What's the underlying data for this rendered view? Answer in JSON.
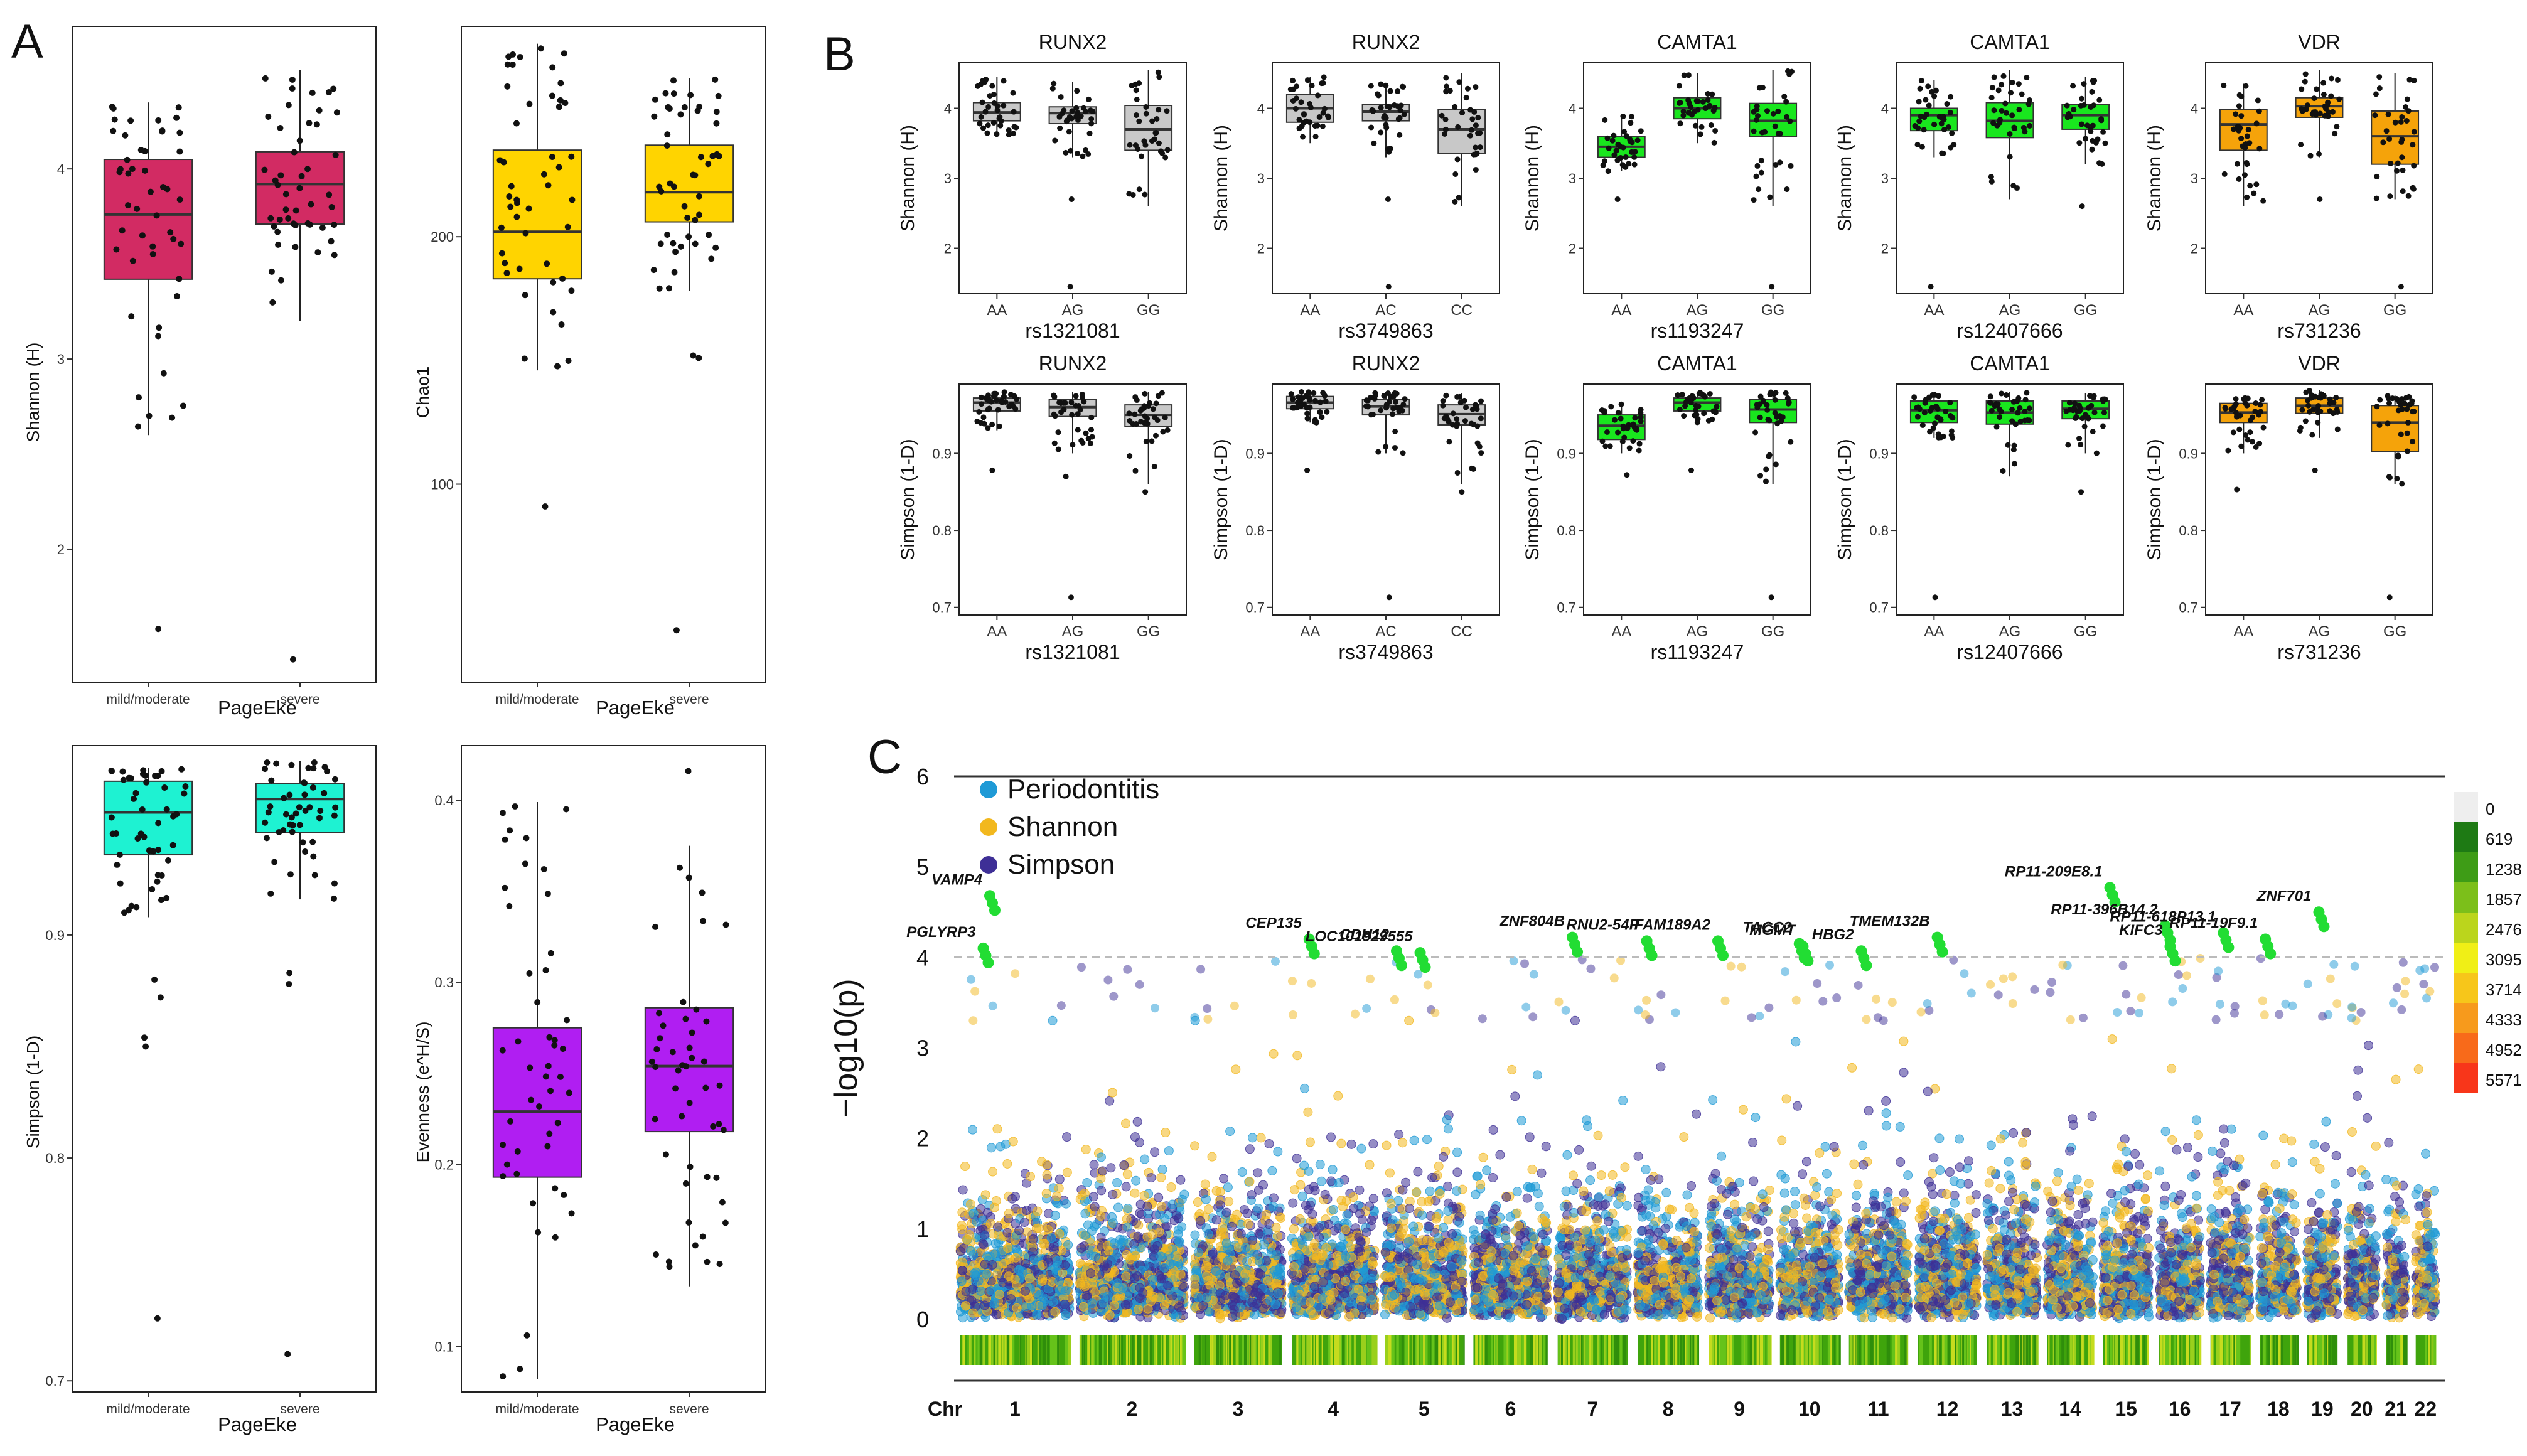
{
  "panel_letters": {
    "a": "A",
    "b": "B",
    "c": "C"
  },
  "colors": {
    "shannon_box": "#d22b63",
    "chao1_box": "#ffd400",
    "simpson_box": "#1ef2d2",
    "evenness_box": "#b01ef2",
    "grey_box": "#c8c8c8",
    "green_box": "#19e61e",
    "orange_box": "#f5a30a",
    "periodontitis": "#1f9ad6",
    "shannon_pt": "#f2b81e",
    "simpson_pt": "#3e2f96",
    "hit_pt": "#22dd33"
  },
  "chart_data": [
    {
      "id": "A1",
      "type": "box",
      "ylabel": "Shannon (H)",
      "xlabel": "PageEke",
      "ylim": [
        1.3,
        4.75
      ],
      "yticks": [
        2,
        3,
        4
      ],
      "categories": [
        "mild/moderate",
        "severe"
      ],
      "boxes": [
        {
          "min": 2.6,
          "q1": 3.42,
          "median": 3.76,
          "q3": 4.05,
          "max": 4.35,
          "outliers": [
            1.58
          ]
        },
        {
          "min": 3.2,
          "q1": 3.71,
          "median": 3.92,
          "q3": 4.09,
          "max": 4.52,
          "outliers": [
            1.42
          ]
        }
      ]
    },
    {
      "id": "A2",
      "type": "box",
      "ylabel": "Chao1",
      "xlabel": "PageEke",
      "ylim": [
        20,
        285
      ],
      "yticks": [
        100,
        200
      ],
      "categories": [
        "mild/moderate",
        "severe"
      ],
      "boxes": [
        {
          "min": 146,
          "q1": 183,
          "median": 202,
          "q3": 235,
          "max": 278,
          "outliers": [
            91
          ]
        },
        {
          "min": 178,
          "q1": 206,
          "median": 218,
          "q3": 237,
          "max": 264,
          "outliers": [
            41,
            151,
            152
          ]
        }
      ]
    },
    {
      "id": "A3",
      "type": "box",
      "ylabel": "Simpson (1-D)",
      "xlabel": "PageEke",
      "ylim": [
        0.695,
        0.985
      ],
      "yticks": [
        0.7,
        0.8,
        0.9
      ],
      "categories": [
        "mild/moderate",
        "severe"
      ],
      "boxes": [
        {
          "min": 0.908,
          "q1": 0.936,
          "median": 0.955,
          "q3": 0.969,
          "max": 0.975,
          "outliers": [
            0.728,
            0.85,
            0.854,
            0.872,
            0.88
          ]
        },
        {
          "min": 0.916,
          "q1": 0.946,
          "median": 0.961,
          "q3": 0.968,
          "max": 0.978,
          "outliers": [
            0.712,
            0.878,
            0.883
          ]
        }
      ]
    },
    {
      "id": "A4",
      "type": "box",
      "ylabel": "Evenness (e^H/S)",
      "xlabel": "PageEke",
      "ylim": [
        0.075,
        0.43
      ],
      "yticks": [
        0.1,
        0.2,
        0.3,
        0.4
      ],
      "categories": [
        "mild/moderate",
        "severe"
      ],
      "boxes": [
        {
          "min": 0.082,
          "q1": 0.193,
          "median": 0.229,
          "q3": 0.275,
          "max": 0.399,
          "outliers": []
        },
        {
          "min": 0.133,
          "q1": 0.218,
          "median": 0.254,
          "q3": 0.286,
          "max": 0.375,
          "outliers": [
            0.416
          ]
        }
      ]
    },
    {
      "id": "B-shannon",
      "type": "box-grid",
      "ylabel": "Shannon (H)",
      "ylim": [
        1.35,
        4.65
      ],
      "yticks": [
        2,
        3,
        4
      ],
      "panels": [
        {
          "gene": "RUNX2",
          "snp": "rs1321081",
          "categories": [
            "AA",
            "AG",
            "GG"
          ],
          "color": "grey",
          "boxes": [
            {
              "min": 3.6,
              "q1": 3.82,
              "median": 3.94,
              "q3": 4.08,
              "max": 4.45,
              "outliers": []
            },
            {
              "min": 3.3,
              "q1": 3.78,
              "median": 3.93,
              "q3": 4.02,
              "max": 4.38,
              "outliers": [
                2.7,
                1.45
              ]
            },
            {
              "min": 2.6,
              "q1": 3.4,
              "median": 3.7,
              "q3": 4.04,
              "max": 4.55,
              "outliers": []
            }
          ]
        },
        {
          "gene": "RUNX2",
          "snp": "rs3749863",
          "categories": [
            "AA",
            "AC",
            "CC"
          ],
          "color": "grey",
          "boxes": [
            {
              "min": 3.5,
              "q1": 3.8,
              "median": 4.0,
              "q3": 4.2,
              "max": 4.45,
              "outliers": []
            },
            {
              "min": 3.3,
              "q1": 3.82,
              "median": 3.95,
              "q3": 4.05,
              "max": 4.35,
              "outliers": [
                2.7,
                1.45
              ]
            },
            {
              "min": 2.6,
              "q1": 3.35,
              "median": 3.7,
              "q3": 3.98,
              "max": 4.5,
              "outliers": []
            }
          ]
        },
        {
          "gene": "CAMTA1",
          "snp": "rs1193247",
          "categories": [
            "AA",
            "AG",
            "GG"
          ],
          "color": "green",
          "boxes": [
            {
              "min": 3.1,
              "q1": 3.3,
              "median": 3.45,
              "q3": 3.6,
              "max": 3.9,
              "outliers": [
                2.7
              ]
            },
            {
              "min": 3.5,
              "q1": 3.85,
              "median": 4.0,
              "q3": 4.15,
              "max": 4.5,
              "outliers": []
            },
            {
              "min": 2.6,
              "q1": 3.6,
              "median": 3.82,
              "q3": 4.07,
              "max": 4.55,
              "outliers": [
                1.45
              ]
            }
          ]
        },
        {
          "gene": "CAMTA1",
          "snp": "rs12407666",
          "categories": [
            "AA",
            "AG",
            "GG"
          ],
          "color": "green",
          "boxes": [
            {
              "min": 3.3,
              "q1": 3.68,
              "median": 3.9,
              "q3": 4.0,
              "max": 4.4,
              "outliers": [
                1.45
              ]
            },
            {
              "min": 2.7,
              "q1": 3.58,
              "median": 3.82,
              "q3": 4.08,
              "max": 4.55,
              "outliers": []
            },
            {
              "min": 3.2,
              "q1": 3.7,
              "median": 3.9,
              "q3": 4.05,
              "max": 4.45,
              "outliers": [
                2.6
              ]
            }
          ]
        },
        {
          "gene": "VDR",
          "snp": "rs731236",
          "categories": [
            "AA",
            "AG",
            "GG"
          ],
          "color": "orange",
          "boxes": [
            {
              "min": 2.6,
              "q1": 3.4,
              "median": 3.77,
              "q3": 3.98,
              "max": 4.35,
              "outliers": []
            },
            {
              "min": 3.3,
              "q1": 3.87,
              "median": 4.03,
              "q3": 4.15,
              "max": 4.55,
              "outliers": [
                2.7
              ]
            },
            {
              "min": 2.7,
              "q1": 3.2,
              "median": 3.6,
              "q3": 3.96,
              "max": 4.5,
              "outliers": [
                1.45
              ]
            }
          ]
        }
      ]
    },
    {
      "id": "B-simpson",
      "type": "box-grid",
      "ylabel": "Simpson (1-D)",
      "ylim": [
        0.69,
        0.99
      ],
      "yticks": [
        0.7,
        0.8,
        0.9
      ],
      "panels": [
        {
          "gene": "RUNX2",
          "snp": "rs1321081",
          "categories": [
            "AA",
            "AG",
            "GG"
          ],
          "color": "grey",
          "boxes": [
            {
              "min": 0.93,
              "q1": 0.955,
              "median": 0.966,
              "q3": 0.972,
              "max": 0.98,
              "outliers": [
                0.878
              ]
            },
            {
              "min": 0.9,
              "q1": 0.948,
              "median": 0.96,
              "q3": 0.97,
              "max": 0.98,
              "outliers": [
                0.713,
                0.87
              ]
            },
            {
              "min": 0.86,
              "q1": 0.935,
              "median": 0.95,
              "q3": 0.963,
              "max": 0.98,
              "outliers": [
                0.85
              ]
            }
          ]
        },
        {
          "gene": "RUNX2",
          "snp": "rs3749863",
          "categories": [
            "AA",
            "AC",
            "CC"
          ],
          "color": "grey",
          "boxes": [
            {
              "min": 0.94,
              "q1": 0.958,
              "median": 0.966,
              "q3": 0.974,
              "max": 0.98,
              "outliers": [
                0.878
              ]
            },
            {
              "min": 0.9,
              "q1": 0.95,
              "median": 0.961,
              "q3": 0.97,
              "max": 0.98,
              "outliers": [
                0.713
              ]
            },
            {
              "min": 0.86,
              "q1": 0.937,
              "median": 0.951,
              "q3": 0.963,
              "max": 0.978,
              "outliers": [
                0.85
              ]
            }
          ]
        },
        {
          "gene": "CAMTA1",
          "snp": "rs1193247",
          "categories": [
            "AA",
            "AG",
            "GG"
          ],
          "color": "green",
          "boxes": [
            {
              "min": 0.9,
              "q1": 0.918,
              "median": 0.936,
              "q3": 0.95,
              "max": 0.965,
              "outliers": [
                0.872
              ]
            },
            {
              "min": 0.94,
              "q1": 0.955,
              "median": 0.966,
              "q3": 0.972,
              "max": 0.98,
              "outliers": [
                0.878
              ]
            },
            {
              "min": 0.86,
              "q1": 0.94,
              "median": 0.957,
              "q3": 0.97,
              "max": 0.98,
              "outliers": [
                0.713
              ]
            }
          ]
        },
        {
          "gene": "CAMTA1",
          "snp": "rs12407666",
          "categories": [
            "AA",
            "AG",
            "GG"
          ],
          "color": "green",
          "boxes": [
            {
              "min": 0.92,
              "q1": 0.94,
              "median": 0.956,
              "q3": 0.968,
              "max": 0.978,
              "outliers": [
                0.713
              ]
            },
            {
              "min": 0.87,
              "q1": 0.938,
              "median": 0.953,
              "q3": 0.968,
              "max": 0.98,
              "outliers": []
            },
            {
              "min": 0.9,
              "q1": 0.945,
              "median": 0.958,
              "q3": 0.968,
              "max": 0.978,
              "outliers": [
                0.85
              ]
            }
          ]
        },
        {
          "gene": "VDR",
          "snp": "rs731236",
          "categories": [
            "AA",
            "AG",
            "GG"
          ],
          "color": "orange",
          "boxes": [
            {
              "min": 0.9,
              "q1": 0.94,
              "median": 0.953,
              "q3": 0.965,
              "max": 0.975,
              "outliers": [
                0.853
              ]
            },
            {
              "min": 0.92,
              "q1": 0.952,
              "median": 0.962,
              "q3": 0.972,
              "max": 0.982,
              "outliers": [
                0.878
              ]
            },
            {
              "min": 0.86,
              "q1": 0.902,
              "median": 0.94,
              "q3": 0.962,
              "max": 0.975,
              "outliers": [
                0.713
              ]
            }
          ]
        }
      ]
    },
    {
      "id": "C",
      "type": "manhattan",
      "ylabel": "−log10(p)",
      "xlabel": "Chr",
      "ylim": [
        0,
        6
      ],
      "yticks": [
        0,
        1,
        2,
        3,
        4,
        5,
        6
      ],
      "threshold": 4,
      "legend": [
        "Periodontitis",
        "Shannon",
        "Simpson"
      ],
      "chromosomes": [
        "1",
        "2",
        "3",
        "4",
        "5",
        "6",
        "7",
        "8",
        "9",
        "10",
        "11",
        "12",
        "13",
        "14",
        "15",
        "16",
        "17",
        "18",
        "19",
        "20",
        "21",
        "22"
      ],
      "density_legend": [
        "0",
        "619",
        "1238",
        "1857",
        "2476",
        "3095",
        "3714",
        "4333",
        "4952",
        "5571"
      ],
      "hits": [
        {
          "gene": "PGLYRP3",
          "chr": 1,
          "pos": 0.1,
          "p": 4.1
        },
        {
          "gene": "VAMP4",
          "chr": 1,
          "pos": 0.2,
          "p": 4.68
        },
        {
          "gene": "CEP135",
          "chr": 4,
          "pos": 0.1,
          "p": 4.2
        },
        {
          "gene": "CDH12",
          "chr": 5,
          "pos": 0.0,
          "p": 4.07
        },
        {
          "gene": "LOC101929555",
          "chr": 5,
          "pos": 0.5,
          "p": 4.05
        },
        {
          "gene": "ZNF804B",
          "chr": 7,
          "pos": 0.1,
          "p": 4.22
        },
        {
          "gene": "RNU2-54P",
          "chr": 8,
          "pos": 0.0,
          "p": 4.18
        },
        {
          "gene": "FAM189A2",
          "chr": 9,
          "pos": 0.0,
          "p": 4.18
        },
        {
          "gene": "TACC2",
          "chr": 10,
          "pos": 0.3,
          "p": 4.15
        },
        {
          "gene": "MGMT",
          "chr": 10,
          "pos": 0.4,
          "p": 4.12
        },
        {
          "gene": "HBG2",
          "chr": 11,
          "pos": 0.1,
          "p": 4.07
        },
        {
          "gene": "TMEM132B",
          "chr": 12,
          "pos": 0.3,
          "p": 4.22
        },
        {
          "gene": "RP11-209E8.1",
          "chr": 15,
          "pos": 0.0,
          "p": 4.77
        },
        {
          "gene": "RP11-396B14.2",
          "chr": 16,
          "pos": 0.0,
          "p": 4.35
        },
        {
          "gene": "KIFC3",
          "chr": 16,
          "pos": 0.2,
          "p": 4.12
        },
        {
          "gene": "RP11-618P13.1",
          "chr": 17,
          "pos": 0.3,
          "p": 4.27
        },
        {
          "gene": "RP11-19F9.1",
          "chr": 18,
          "pos": 0.0,
          "p": 4.2
        },
        {
          "gene": "ZNF701",
          "chr": 19,
          "pos": 0.4,
          "p": 4.5
        }
      ]
    }
  ]
}
